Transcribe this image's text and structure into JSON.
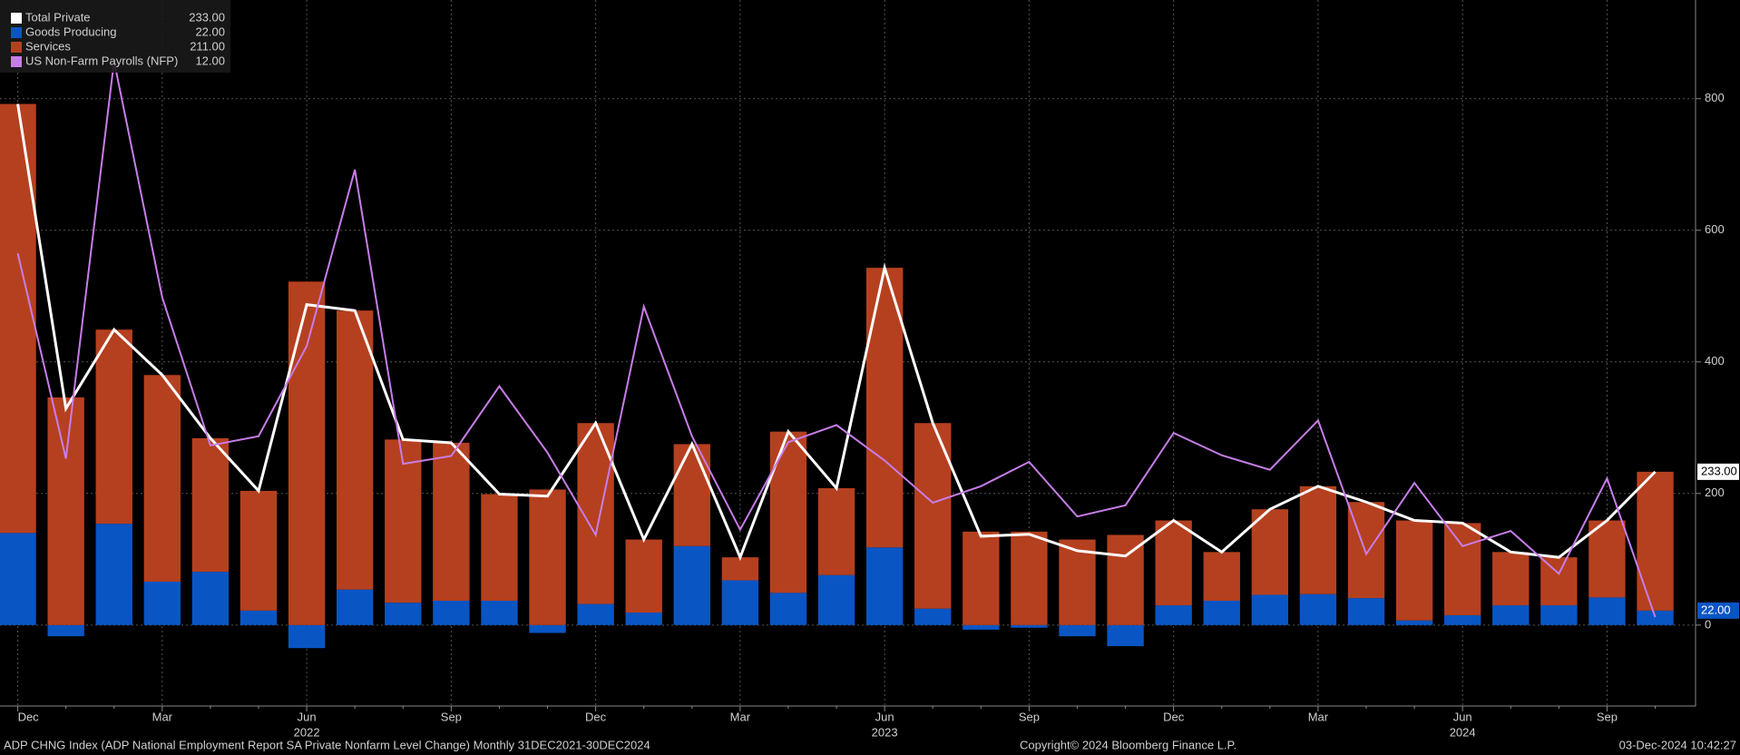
{
  "chart_data": {
    "type": "bar",
    "stacked": true,
    "grid": true,
    "categories": [
      "Dec",
      null,
      null,
      "Mar",
      null,
      null,
      "Jun",
      null,
      null,
      "Sep",
      null,
      null,
      "Dec",
      null,
      null,
      "Mar",
      null,
      null,
      "Jun",
      null,
      null,
      "Sep",
      null,
      null,
      "Dec",
      null,
      null,
      "Mar",
      null,
      null,
      "Jun",
      null,
      null,
      "Sep",
      null
    ],
    "years": [
      "2022",
      "2023",
      "2024"
    ],
    "series": [
      {
        "name": "Total Private",
        "kind": "line",
        "color": "#ffffff",
        "last_label": "233.00",
        "values": [
          792,
          329,
          449,
          380,
          284,
          204,
          487,
          478,
          282,
          277,
          199,
          196,
          307,
          130,
          275,
          103,
          294,
          208,
          543,
          307,
          135,
          138,
          113,
          105,
          159,
          111,
          176,
          211,
          187,
          159,
          155,
          111,
          103,
          159,
          233
        ]
      },
      {
        "name": "Goods Producing",
        "kind": "bar",
        "color": "#0a55c4",
        "last_label": "22.00",
        "values": [
          140,
          -17,
          154,
          66,
          81,
          22,
          -35,
          54,
          34,
          37,
          37,
          -12,
          32,
          19,
          120,
          68,
          49,
          76,
          118,
          25,
          -7,
          -4,
          -17,
          -32,
          30,
          37,
          46,
          47,
          41,
          7,
          15,
          30,
          30,
          42,
          22
        ]
      },
      {
        "name": "Services",
        "kind": "bar",
        "color": "#b5401f",
        "last_label": "211.00",
        "values": [
          652,
          346,
          295,
          314,
          203,
          182,
          522,
          424,
          248,
          240,
          162,
          206,
          275,
          111,
          155,
          35,
          245,
          132,
          425,
          282,
          142,
          142,
          130,
          137,
          129,
          74,
          130,
          164,
          146,
          152,
          140,
          81,
          73,
          117,
          211
        ]
      },
      {
        "name": "US Non-Farm Payrolls (NFP)",
        "kind": "line",
        "color": "#c77de8",
        "last_label": "12.00",
        "values": [
          565,
          253,
          857,
          498,
          273,
          287,
          424,
          692,
          245,
          257,
          363,
          262,
          137,
          484,
          287,
          145,
          278,
          304,
          250,
          186,
          211,
          248,
          165,
          182,
          292,
          258,
          236,
          311,
          108,
          216,
          120,
          143,
          78,
          223,
          12
        ]
      }
    ],
    "ylim": [
      -123,
      950
    ],
    "yticks": [
      0,
      200,
      400,
      600,
      800
    ],
    "footer": {
      "left": "ADP CHNG Index (ADP National Employment Report SA Private Nonfarm Level Change)  Monthly 31DEC2021-30DEC2024",
      "center": "Copyright© 2024 Bloomberg Finance L.P.",
      "right": "03-Dec-2024 10:42:27"
    }
  }
}
